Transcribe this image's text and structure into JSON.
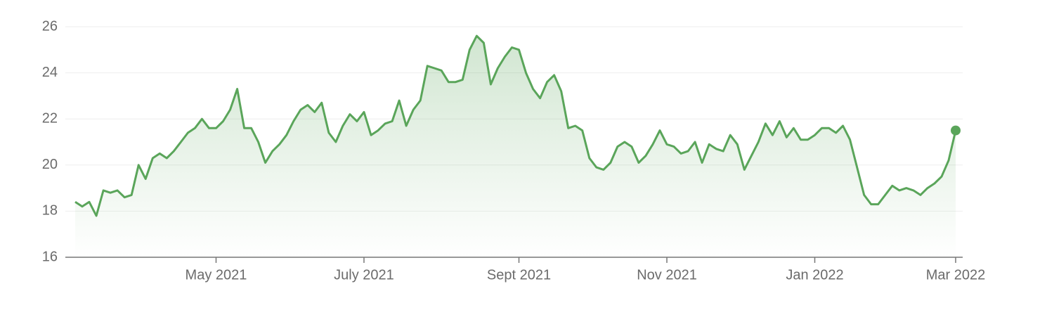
{
  "chart_data": {
    "type": "line",
    "categories": [
      null,
      null,
      null,
      null,
      null,
      null,
      null,
      null,
      null,
      null,
      null,
      null,
      null,
      null,
      null,
      null,
      null,
      null,
      null,
      null,
      "May 2021",
      null,
      null,
      null,
      null,
      null,
      null,
      null,
      null,
      null,
      null,
      null,
      null,
      null,
      null,
      null,
      null,
      null,
      null,
      null,
      null,
      "July 2021",
      null,
      null,
      null,
      null,
      null,
      null,
      null,
      null,
      null,
      null,
      null,
      null,
      null,
      null,
      null,
      null,
      null,
      null,
      null,
      null,
      null,
      "Sept 2021",
      null,
      null,
      null,
      null,
      null,
      null,
      null,
      null,
      null,
      null,
      null,
      null,
      null,
      null,
      null,
      null,
      null,
      null,
      null,
      null,
      "Nov 2021",
      null,
      null,
      null,
      null,
      null,
      null,
      null,
      null,
      null,
      null,
      null,
      null,
      null,
      null,
      null,
      null,
      null,
      null,
      null,
      null,
      "Jan 2022",
      null,
      null,
      null,
      null,
      null,
      null,
      null,
      null,
      null,
      null,
      null,
      null,
      null,
      null,
      null,
      null,
      null,
      null,
      null,
      "Mar 2022"
    ],
    "series": [
      {
        "color": "#5aa55a",
        "values": [
          18.4,
          18.2,
          18.4,
          17.8,
          18.9,
          18.8,
          18.9,
          18.6,
          18.7,
          20.0,
          19.4,
          20.3,
          20.5,
          20.3,
          20.6,
          21.0,
          21.4,
          21.6,
          22.0,
          21.6,
          21.6,
          21.9,
          22.4,
          23.3,
          21.6,
          21.6,
          21.0,
          20.1,
          20.6,
          20.9,
          21.3,
          21.9,
          22.4,
          22.6,
          22.3,
          22.7,
          21.4,
          21.0,
          21.7,
          22.2,
          21.9,
          22.3,
          21.3,
          21.5,
          21.8,
          21.9,
          22.8,
          21.7,
          22.4,
          22.8,
          24.3,
          24.2,
          24.1,
          23.6,
          23.6,
          23.7,
          25.0,
          25.6,
          25.3,
          23.5,
          24.2,
          24.7,
          25.1,
          25.0,
          24.0,
          23.3,
          22.9,
          23.6,
          23.9,
          23.2,
          21.6,
          21.7,
          21.5,
          20.3,
          19.9,
          19.8,
          20.1,
          20.8,
          21.0,
          20.8,
          20.1,
          20.4,
          20.9,
          21.5,
          20.9,
          20.8,
          20.5,
          20.6,
          21.0,
          20.1,
          20.9,
          20.7,
          20.6,
          21.3,
          20.9,
          19.8,
          20.4,
          21.0,
          21.8,
          21.3,
          21.9,
          21.2,
          21.6,
          21.1,
          21.1,
          21.3,
          21.6,
          21.6,
          21.4,
          21.7,
          21.1,
          19.9,
          18.7,
          18.3,
          18.3,
          18.7,
          19.1,
          18.9,
          19.0,
          18.9,
          18.7,
          19.0,
          19.2,
          19.5,
          20.2,
          21.5
        ]
      }
    ],
    "ylim": [
      16,
      26
    ],
    "yticks": [
      16,
      18,
      20,
      22,
      24,
      26
    ],
    "grid": true
  }
}
